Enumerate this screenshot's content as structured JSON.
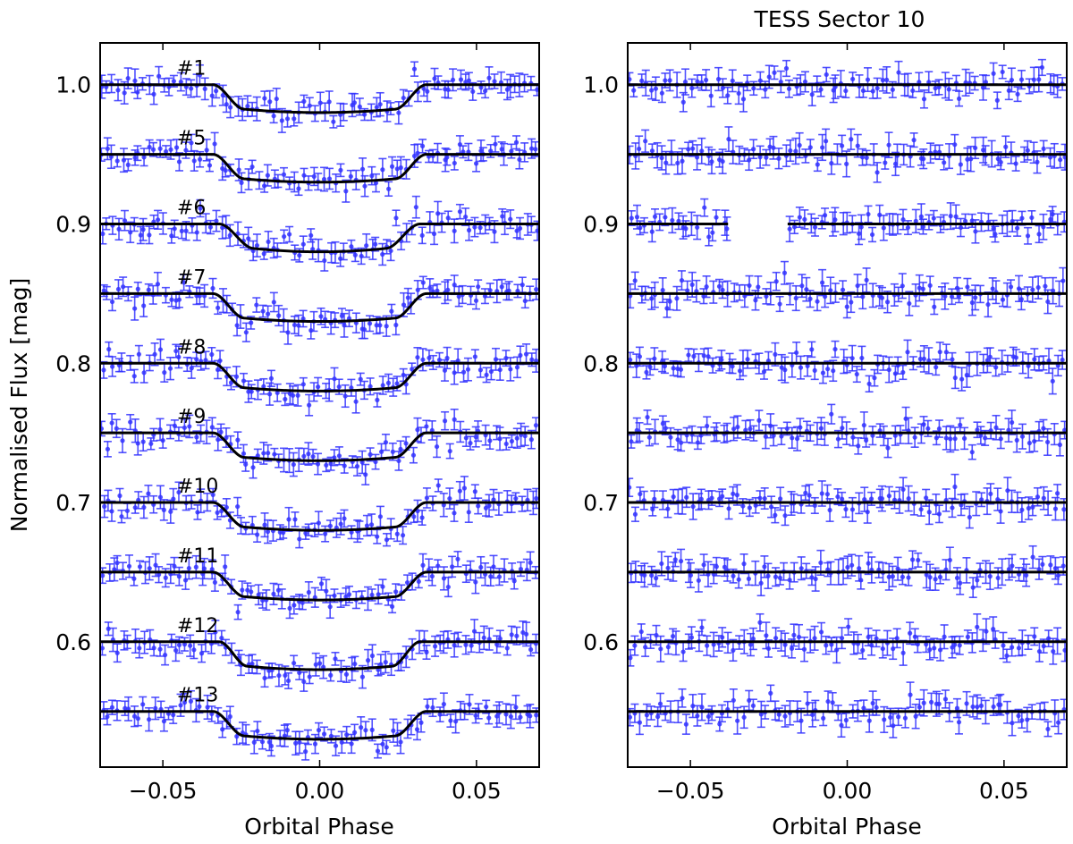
{
  "chart_data": [
    {
      "type": "scatter",
      "panel": "left",
      "title": "",
      "xlabel": "Orbital Phase",
      "ylabel": "Normalised Flux [mag]",
      "xlim": [
        -0.07,
        0.07
      ],
      "ylim": [
        0.51,
        1.03
      ],
      "x_ticks": [
        -0.05,
        0.0,
        0.05
      ],
      "x_tick_labels": [
        "−0.05",
        "0.00",
        "0.05"
      ],
      "y_ticks": [
        1.0,
        0.9,
        0.8,
        0.7,
        0.6
      ],
      "y_tick_labels": [
        "1.0",
        "0.9",
        "0.8",
        "0.7",
        "0.6"
      ],
      "point_color": "#3333ff",
      "model_color": "#000000",
      "noise_sigma": 0.0045,
      "points_per_curve": 85,
      "series": [
        {
          "name": "#1",
          "baseline": 1.0,
          "depth": 0.02,
          "t1": -0.034,
          "t2": -0.024,
          "t3": 0.024,
          "t4": 0.034
        },
        {
          "name": "#5",
          "baseline": 0.95,
          "depth": 0.02,
          "t1": -0.034,
          "t2": -0.024,
          "t3": 0.024,
          "t4": 0.034
        },
        {
          "name": "#6",
          "baseline": 0.9,
          "depth": 0.02,
          "t1": -0.032,
          "t2": -0.021,
          "t3": 0.021,
          "t4": 0.032
        },
        {
          "name": "#7",
          "baseline": 0.85,
          "depth": 0.02,
          "t1": -0.034,
          "t2": -0.024,
          "t3": 0.024,
          "t4": 0.034
        },
        {
          "name": "#8",
          "baseline": 0.8,
          "depth": 0.02,
          "t1": -0.034,
          "t2": -0.024,
          "t3": 0.024,
          "t4": 0.034
        },
        {
          "name": "#9",
          "baseline": 0.75,
          "depth": 0.02,
          "t1": -0.034,
          "t2": -0.024,
          "t3": 0.024,
          "t4": 0.034
        },
        {
          "name": "#10",
          "baseline": 0.7,
          "depth": 0.02,
          "t1": -0.034,
          "t2": -0.024,
          "t3": 0.024,
          "t4": 0.034
        },
        {
          "name": "#11",
          "baseline": 0.65,
          "depth": 0.02,
          "t1": -0.034,
          "t2": -0.024,
          "t3": 0.024,
          "t4": 0.034
        },
        {
          "name": "#12",
          "baseline": 0.6,
          "depth": 0.02,
          "t1": -0.032,
          "t2": -0.023,
          "t3": 0.023,
          "t4": 0.032
        },
        {
          "name": "#13",
          "baseline": 0.55,
          "depth": 0.02,
          "t1": -0.034,
          "t2": -0.024,
          "t3": 0.024,
          "t4": 0.034
        }
      ]
    },
    {
      "type": "scatter",
      "panel": "right",
      "title": "TESS Sector 10",
      "xlabel": "Orbital Phase",
      "ylabel": "",
      "xlim": [
        -0.07,
        0.07
      ],
      "ylim": [
        0.51,
        1.03
      ],
      "x_ticks": [
        -0.05,
        0.0,
        0.05
      ],
      "x_tick_labels": [
        "−0.05",
        "0.00",
        "0.05"
      ],
      "y_ticks": [
        1.0,
        0.9,
        0.8,
        0.7,
        0.6
      ],
      "y_tick_labels": [
        "1.0",
        "0.9",
        "0.8",
        "0.7",
        "0.6"
      ],
      "point_color": "#3333ff",
      "model_color": "#000000",
      "noise_sigma": 0.005,
      "points_per_curve": 85,
      "series": [
        {
          "name": "",
          "baseline": 1.0,
          "depth": 0.0
        },
        {
          "name": "",
          "baseline": 0.95,
          "depth": 0.0
        },
        {
          "name": "",
          "baseline": 0.9,
          "depth": 0.0,
          "gap": [
            -0.038,
            -0.019
          ]
        },
        {
          "name": "",
          "baseline": 0.85,
          "depth": 0.0
        },
        {
          "name": "",
          "baseline": 0.8,
          "depth": 0.0
        },
        {
          "name": "",
          "baseline": 0.75,
          "depth": 0.0
        },
        {
          "name": "",
          "baseline": 0.7,
          "depth": 0.0
        },
        {
          "name": "",
          "baseline": 0.65,
          "depth": 0.0
        },
        {
          "name": "",
          "baseline": 0.6,
          "depth": 0.0
        },
        {
          "name": "",
          "baseline": 0.55,
          "depth": 0.0
        }
      ]
    }
  ]
}
